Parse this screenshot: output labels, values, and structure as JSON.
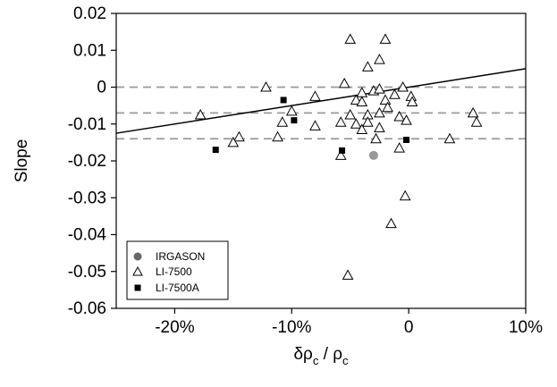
{
  "chart_data": {
    "type": "scatter",
    "title": "",
    "xlabel": "δρ_c / ρ_c",
    "ylabel": "Slope",
    "xlim": [
      -0.25,
      0.1
    ],
    "ylim": [
      -0.06,
      0.02
    ],
    "x_ticks": [
      {
        "value": -0.2,
        "label": "-20%"
      },
      {
        "value": -0.1,
        "label": "-10%"
      },
      {
        "value": 0.0,
        "label": "0"
      },
      {
        "value": 0.1,
        "label": "10%"
      }
    ],
    "y_ticks": [
      {
        "value": 0.02,
        "label": "0.02"
      },
      {
        "value": 0.01,
        "label": "0.01"
      },
      {
        "value": 0.0,
        "label": "0"
      },
      {
        "value": -0.01,
        "label": "-0.01"
      },
      {
        "value": -0.02,
        "label": "-0.02"
      },
      {
        "value": -0.03,
        "label": "-0.03"
      },
      {
        "value": -0.04,
        "label": "-0.04"
      },
      {
        "value": -0.05,
        "label": "-0.05"
      },
      {
        "value": -0.06,
        "label": "-0.06"
      }
    ],
    "grid": false,
    "legend_position": "bottom-left",
    "reference_lines": [
      0.0,
      -0.007,
      -0.014
    ],
    "fit_line": {
      "x": [
        -0.25,
        0.1
      ],
      "y": [
        -0.0125,
        0.005
      ]
    },
    "series": [
      {
        "name": "IRGASON",
        "marker": "circle",
        "color": "#999999",
        "points": [
          {
            "x": -0.03,
            "y": -0.0185
          }
        ]
      },
      {
        "name": "LI-7500",
        "marker": "triangle-open",
        "color": "#000000",
        "points": [
          {
            "x": -0.05,
            "y": 0.013
          },
          {
            "x": -0.02,
            "y": 0.013
          },
          {
            "x": -0.035,
            "y": 0.0055
          },
          {
            "x": -0.025,
            "y": 0.0075
          },
          {
            "x": -0.122,
            "y": 0.0
          },
          {
            "x": -0.055,
            "y": 0.001
          },
          {
            "x": -0.04,
            "y": -0.0015
          },
          {
            "x": -0.03,
            "y": -0.001
          },
          {
            "x": -0.025,
            "y": -0.0005
          },
          {
            "x": -0.005,
            "y": 0.0
          },
          {
            "x": 0.002,
            "y": -0.0025
          },
          {
            "x": -0.08,
            "y": -0.0025
          },
          {
            "x": -0.012,
            "y": -0.002
          },
          {
            "x": -0.045,
            "y": -0.0035
          },
          {
            "x": -0.04,
            "y": -0.004
          },
          {
            "x": -0.02,
            "y": -0.0035
          },
          {
            "x": 0.003,
            "y": -0.004
          },
          {
            "x": -0.018,
            "y": -0.0055
          },
          {
            "x": -0.1,
            "y": -0.0065
          },
          {
            "x": -0.05,
            "y": -0.0075
          },
          {
            "x": -0.035,
            "y": -0.0075
          },
          {
            "x": -0.025,
            "y": -0.007
          },
          {
            "x": -0.008,
            "y": -0.008
          },
          {
            "x": -0.002,
            "y": -0.009
          },
          {
            "x": -0.178,
            "y": -0.0075
          },
          {
            "x": 0.055,
            "y": -0.007
          },
          {
            "x": -0.108,
            "y": -0.0095
          },
          {
            "x": -0.08,
            "y": -0.0105
          },
          {
            "x": -0.058,
            "y": -0.0095
          },
          {
            "x": -0.045,
            "y": -0.01
          },
          {
            "x": -0.04,
            "y": -0.0115
          },
          {
            "x": -0.035,
            "y": -0.0095
          },
          {
            "x": -0.025,
            "y": -0.011
          },
          {
            "x": 0.058,
            "y": -0.0095
          },
          {
            "x": -0.145,
            "y": -0.0135
          },
          {
            "x": -0.112,
            "y": -0.0135
          },
          {
            "x": -0.028,
            "y": -0.014
          },
          {
            "x": 0.035,
            "y": -0.014
          },
          {
            "x": -0.15,
            "y": -0.015
          },
          {
            "x": -0.058,
            "y": -0.0185
          },
          {
            "x": -0.008,
            "y": -0.0165
          },
          {
            "x": -0.003,
            "y": -0.0295
          },
          {
            "x": -0.015,
            "y": -0.037
          },
          {
            "x": -0.052,
            "y": -0.051
          }
        ]
      },
      {
        "name": "LI-7500A",
        "marker": "square",
        "color": "#000000",
        "points": [
          {
            "x": -0.107,
            "y": -0.0035
          },
          {
            "x": -0.098,
            "y": -0.009
          },
          {
            "x": -0.165,
            "y": -0.017
          },
          {
            "x": -0.057,
            "y": -0.0172
          },
          {
            "x": -0.002,
            "y": -0.0143
          }
        ]
      }
    ]
  }
}
